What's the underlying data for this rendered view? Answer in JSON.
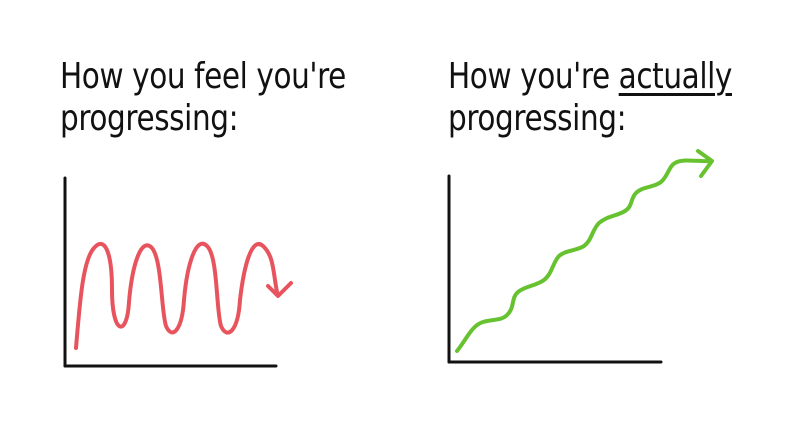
{
  "panels": [
    {
      "title_line1": "How you feel you're",
      "title_line2": "progressing:",
      "curve_color": "#e8545e",
      "curve_style": "wavy oscillating line with downward arrow"
    },
    {
      "title_line1_prefix": "How you're ",
      "title_line1_emphasis": "actually",
      "title_line2": "progressing:",
      "curve_color": "#66c22f",
      "curve_style": "wavy rising line with arrow pointing upper right"
    }
  ],
  "colors": {
    "axis": "#111111",
    "text": "#111111",
    "background": "#ffffff"
  }
}
